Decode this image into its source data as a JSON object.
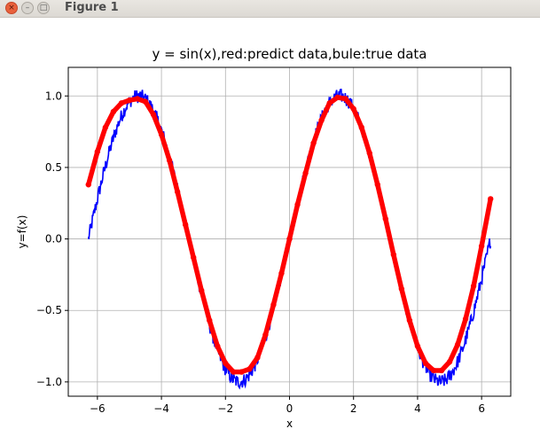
{
  "window": {
    "title": "Figure 1",
    "close_glyph": "×",
    "min_glyph": "–",
    "max_glyph": "□"
  },
  "chart_data": {
    "type": "line",
    "title": "y = sin(x),red:predict data,bule:true data",
    "xlabel": "x",
    "ylabel": "y=f(x)",
    "xlim": [
      -6.91,
      6.91
    ],
    "ylim": [
      -1.1,
      1.2
    ],
    "xticks": [
      -6,
      -4,
      -2,
      0,
      2,
      4,
      6
    ],
    "xtick_labels": [
      "−6",
      "−4",
      "−2",
      "0",
      "2",
      "4",
      "6"
    ],
    "yticks": [
      -1.0,
      -0.5,
      0.0,
      0.5,
      1.0
    ],
    "ytick_labels": [
      "−1.0",
      "−0.5",
      "0.0",
      "0.5",
      "1.0"
    ],
    "grid": true,
    "x_range": [
      -6.283,
      6.283
    ],
    "series": [
      {
        "role": "true data",
        "color": "#0000ff",
        "style": "line",
        "noise_amplitude": 0.1,
        "function": "sin(x) + noise"
      },
      {
        "role": "predict data",
        "color": "#ff0000",
        "style": "thick-points",
        "x": [
          -6.28,
          -6.0,
          -5.75,
          -5.5,
          -5.25,
          -5.0,
          -4.75,
          -4.5,
          -4.25,
          -4.0,
          -3.75,
          -3.5,
          -3.25,
          -3.0,
          -2.75,
          -2.5,
          -2.25,
          -2.0,
          -1.75,
          -1.5,
          -1.25,
          -1.0,
          -0.75,
          -0.5,
          -0.25,
          0.0,
          0.25,
          0.5,
          0.75,
          1.0,
          1.25,
          1.5,
          1.75,
          2.0,
          2.25,
          2.5,
          2.75,
          3.0,
          3.25,
          3.5,
          3.75,
          4.0,
          4.25,
          4.5,
          4.75,
          5.0,
          5.25,
          5.5,
          5.75,
          6.0,
          6.28
        ],
        "y": [
          0.38,
          0.61,
          0.78,
          0.89,
          0.95,
          0.97,
          0.98,
          0.96,
          0.87,
          0.73,
          0.55,
          0.33,
          0.1,
          -0.13,
          -0.36,
          -0.57,
          -0.75,
          -0.87,
          -0.93,
          -0.93,
          -0.91,
          -0.83,
          -0.67,
          -0.46,
          -0.24,
          0.0,
          0.24,
          0.46,
          0.67,
          0.83,
          0.95,
          0.99,
          0.98,
          0.91,
          0.78,
          0.6,
          0.38,
          0.14,
          -0.11,
          -0.35,
          -0.57,
          -0.75,
          -0.87,
          -0.92,
          -0.92,
          -0.86,
          -0.74,
          -0.56,
          -0.33,
          -0.05,
          0.28
        ]
      }
    ]
  }
}
